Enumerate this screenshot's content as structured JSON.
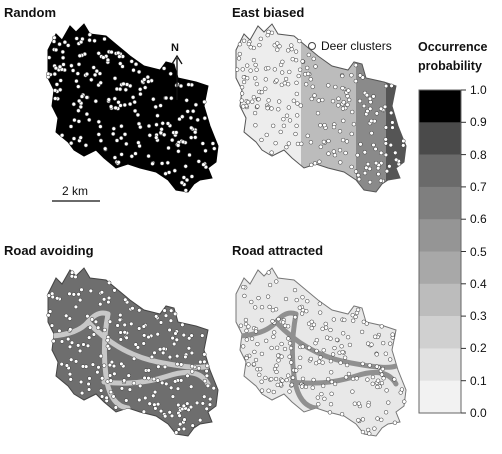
{
  "panels": [
    {
      "title": "Random",
      "fill": "#000000",
      "dots": "#ffffff"
    },
    {
      "title": "East biased",
      "fill": "#dcdcdc",
      "dots": "#ffffff"
    },
    {
      "title": "Road avoiding",
      "fill": "#6e6e6e",
      "dots": "#ffffff"
    },
    {
      "title": "Road attracted",
      "fill": "#e6e6e6",
      "dots": "#ffffff"
    }
  ],
  "north_label": "N",
  "scale_label": "2 km",
  "deer_legend_label": "Deer clusters",
  "legend": {
    "title_line1": "Occurrence",
    "title_line2": "probability",
    "ticks": [
      "1.0",
      "0.9",
      "0.8",
      "0.7",
      "0.6",
      "0.5",
      "0.4",
      "0.3",
      "0.2",
      "0.1",
      "0.0"
    ],
    "band_colors": [
      "#000000",
      "#4a4a4a",
      "#6a6a6a",
      "#7f7f7f",
      "#959595",
      "#a8a8a8",
      "#bcbcbc",
      "#d0d0d0",
      "#e2e2e2",
      "#f2f2f2"
    ]
  }
}
